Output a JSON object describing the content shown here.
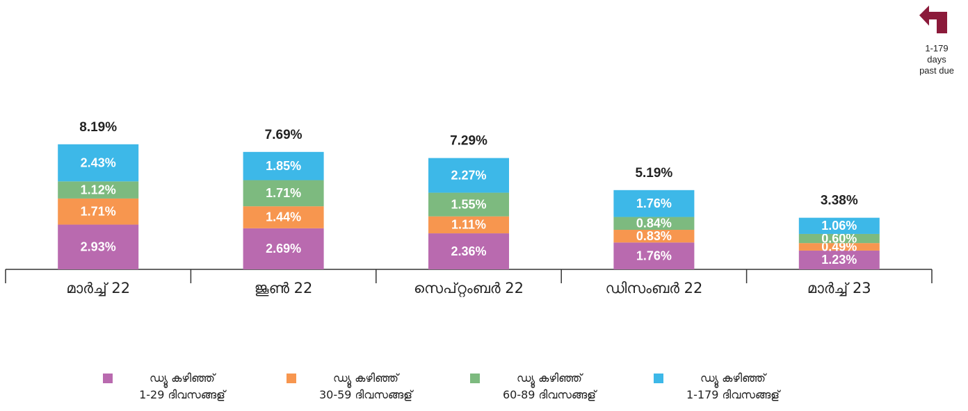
{
  "chart_data": {
    "type": "stacked-bar",
    "categories": [
      "മാർച്ച് 22",
      "ജൂൺ 22",
      "സെപ്റ്റംബർ 22",
      "ഡിസംബർ 22",
      "മാർച്ച് 23"
    ],
    "series": [
      {
        "name": "ഡ്യൂ കഴിഞ്ഞ്\n1-29 ദിവസങ്ങള്",
        "color": "#b96aaf",
        "values": [
          2.93,
          2.69,
          2.36,
          1.76,
          1.23
        ],
        "value_labels": [
          "2.93%",
          "2.69%",
          "2.36%",
          "1.76%",
          "1.23%"
        ]
      },
      {
        "name": "ഡ്യൂ കഴിഞ്ഞ്\n30-59 ദിവസങ്ങള്",
        "color": "#f7964f",
        "values": [
          1.71,
          1.44,
          1.11,
          0.83,
          0.49
        ],
        "value_labels": [
          "1.71%",
          "1.44%",
          "1.11%",
          "0.83%",
          "0.49%"
        ]
      },
      {
        "name": "ഡ്യൂ കഴിഞ്ഞ്\n60-89 ദിവസങ്ങള്",
        "color": "#7dba7f",
        "values": [
          1.12,
          1.71,
          1.55,
          0.84,
          0.6
        ],
        "value_labels": [
          "1.12%",
          "1.71%",
          "1.55%",
          "0.84%",
          "0.60%"
        ]
      },
      {
        "name": "ഡ്യൂ കഴിഞ്ഞ്\n1-179 ദിവസങ്ങള്",
        "color": "#3db8e8",
        "values": [
          2.43,
          1.85,
          2.27,
          1.76,
          1.06
        ],
        "value_labels": [
          "2.43%",
          "1.85%",
          "2.27%",
          "1.76%",
          "1.06%"
        ]
      }
    ],
    "totals": [
      8.19,
      7.69,
      7.29,
      5.19,
      3.38
    ],
    "total_labels": [
      "8.19%",
      "7.69%",
      "7.29%",
      "5.19%",
      "3.38%"
    ],
    "corner_note": "1-179 days past due"
  }
}
